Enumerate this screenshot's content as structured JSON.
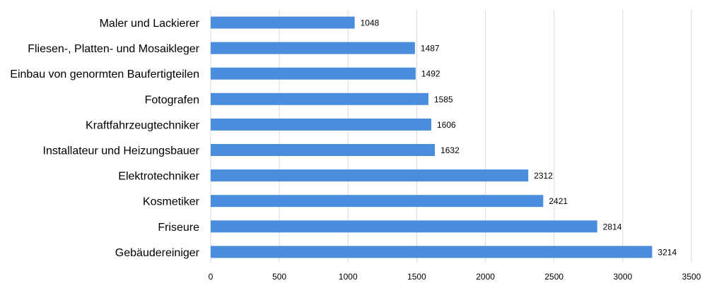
{
  "chart_data": {
    "type": "bar",
    "orientation": "horizontal",
    "categories": [
      "Maler und Lackierer",
      "Fliesen-, Platten- und Mosaikleger",
      "Einbau von genormten Baufertigteilen",
      "Fotografen",
      "Kraftfahrzeugtechniker",
      "Installateur und Heizungsbauer",
      "Elektrotechniker",
      "Kosmetiker",
      "Friseure",
      "Gebäudereiniger"
    ],
    "values": [
      1048,
      1487,
      1492,
      1585,
      1606,
      1632,
      2312,
      2421,
      2814,
      3214
    ],
    "data_labels": [
      "1048",
      "1487",
      "1492",
      "1585",
      "1606",
      "1632",
      "2312",
      "2421",
      "2814",
      "3214"
    ],
    "x_ticks": [
      "0",
      "500",
      "1000",
      "1500",
      "2000",
      "2500",
      "3000",
      "3500"
    ],
    "xlim": [
      0,
      3500
    ],
    "grid": true,
    "grid_axis": "x",
    "legend": "none",
    "bar_color": "#4a8ddc",
    "grid_color": "#d9d9d9",
    "text_color": "#000000"
  }
}
